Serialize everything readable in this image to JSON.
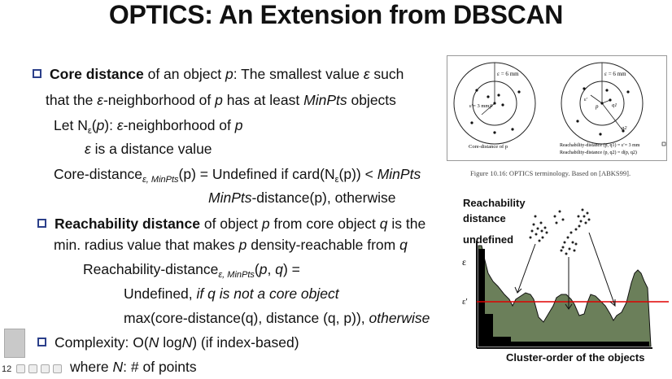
{
  "title": "OPTICS: An Extension from DBSCAN",
  "core": {
    "term": "Core distance",
    "line1_rest": " of an object ",
    "p": "p",
    "line1_rest2": ":  The smallest value ",
    "eps": "ε",
    "line1_end": " such",
    "line2_a": "that the ",
    "line2_b": "-neighborhood of ",
    "line2_c": " has at least ",
    "minpts": "MinPts",
    "line2_d": " objects",
    "let_a": "Let   N",
    "let_sub": "ε",
    "let_b": "(",
    "let_c": "): ",
    "let_d": "-neighborhood of ",
    "eps_line": " is a distance value",
    "cd_a": "Core-distance",
    "cd_sub": "ε, MinPts",
    "cd_b": "(p) = Undefined if card(N",
    "cd_c": "(p)) < ",
    "cd_otherwise": "-distance(p), otherwise"
  },
  "reach": {
    "term": "Reachability distance",
    "a": " of object ",
    "b": " from core object ",
    "c": " is the",
    "line2": "min. radius value that makes ",
    "line2b": " density-reachable from ",
    "q": "q",
    "rd_a": "Reachability-distance",
    "rd_sub": "ε, MinPts",
    "rd_b": "(",
    "rd_c": ", ",
    "rd_d": ") =",
    "undef_a": "Undefined, ",
    "undef_b": "if q is not a core object",
    "max_a": "max(core-distance(q), distance (q, p)), ",
    "max_b": "otherwise"
  },
  "complexity": {
    "a": "Complexity:  O(",
    "N": "N",
    "b": " log",
    "c": ")  (if index-based)",
    "where_a": "where ",
    "where_b": ": # of points"
  },
  "figure": {
    "left_caption": "Core-distance of p",
    "eps_label": "ε = 6 mm",
    "eps_prime_label": "ε′= 3 mm",
    "p": "p",
    "q1": "q1",
    "q2": "q2",
    "eps_prime": "ε′",
    "rd1": "Reachability-distance (p, q1) = ε′= 3 mm",
    "rd2": "Reachability-distance (p, q2) = d(p, q2)",
    "caption": "Figure 10.16: OPTICS terminology. Based on [ABKS99]."
  },
  "chart": {
    "ylabel_1": "Reachability",
    "ylabel_2": "distance",
    "undefined": "undefined",
    "eps": "ε",
    "eps_prime": "ε'",
    "xlabel": "Cluster-order of the objects",
    "fill_color": "#6b7f5a",
    "line_color": "#e00000"
  },
  "page_number": "12"
}
